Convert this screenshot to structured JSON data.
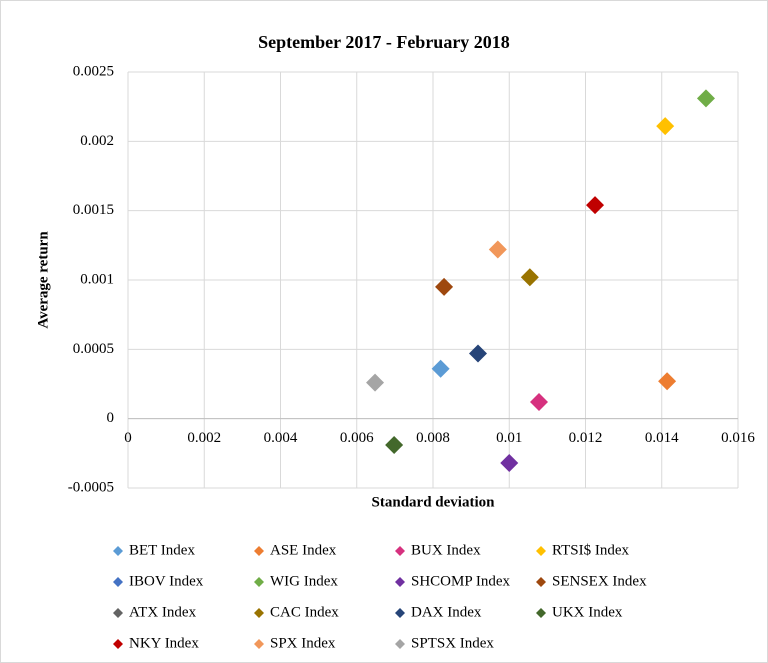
{
  "chart_data": {
    "type": "scatter",
    "title": "September 2017 - February 2018",
    "xlabel": "Standard deviation",
    "ylabel": "Average return",
    "xlim": [
      0,
      0.016
    ],
    "xticks": [
      0,
      0.002,
      0.004,
      0.006,
      0.008,
      0.01,
      0.012,
      0.014,
      0.016
    ],
    "ylim": [
      -0.0005,
      0.0025
    ],
    "yticks": [
      -0.0005,
      0,
      0.0005,
      0.001,
      0.0015,
      0.002,
      0.0025
    ],
    "grid": true,
    "legend": "bottom",
    "series": [
      {
        "name": "BET Index",
        "color": "#5b9bd5",
        "x": [
          0.0082
        ],
        "values": [
          0.00036
        ]
      },
      {
        "name": "ASE Index",
        "color": "#ed7d31",
        "x": [
          0.01414
        ],
        "values": [
          0.00027
        ]
      },
      {
        "name": "BUX Index",
        "color": "#d6317f",
        "x": [
          0.01078
        ],
        "values": [
          0.00012
        ]
      },
      {
        "name": "RTSI$ Index",
        "color": "#ffc000",
        "x": [
          0.01409
        ],
        "values": [
          0.00211
        ]
      },
      {
        "name": "IBOV Index",
        "color": "#4472c4",
        "x": [
          null
        ],
        "values": [
          null
        ]
      },
      {
        "name": "WIG Index",
        "color": "#70ad47",
        "x": [
          0.01516
        ],
        "values": [
          0.00231
        ]
      },
      {
        "name": "SHCOMP Index",
        "color": "#7030a0",
        "x": [
          0.01
        ],
        "values": [
          -0.00032
        ]
      },
      {
        "name": "SENSEX Index",
        "color": "#9e480e",
        "x": [
          0.00829
        ],
        "values": [
          0.00095
        ]
      },
      {
        "name": "ATX Index",
        "color": "#636363",
        "x": [
          null
        ],
        "values": [
          null
        ]
      },
      {
        "name": "CAC Index",
        "color": "#997300",
        "x": [
          0.01054
        ],
        "values": [
          0.00102
        ]
      },
      {
        "name": "DAX Index",
        "color": "#264478",
        "x": [
          0.00918
        ],
        "values": [
          0.00047
        ]
      },
      {
        "name": "UKX Index",
        "color": "#43682b",
        "x": [
          0.00698
        ],
        "values": [
          -0.00019
        ]
      },
      {
        "name": "NKY Index",
        "color": "#c00000",
        "x": [
          0.01225
        ],
        "values": [
          0.00154
        ]
      },
      {
        "name": "SPX Index",
        "color": "#f1975a",
        "x": [
          0.0097
        ],
        "values": [
          0.00122
        ]
      },
      {
        "name": "SPTSX Index",
        "color": "#a5a5a5",
        "x": [
          0.00648
        ],
        "values": [
          0.00026
        ]
      }
    ]
  }
}
